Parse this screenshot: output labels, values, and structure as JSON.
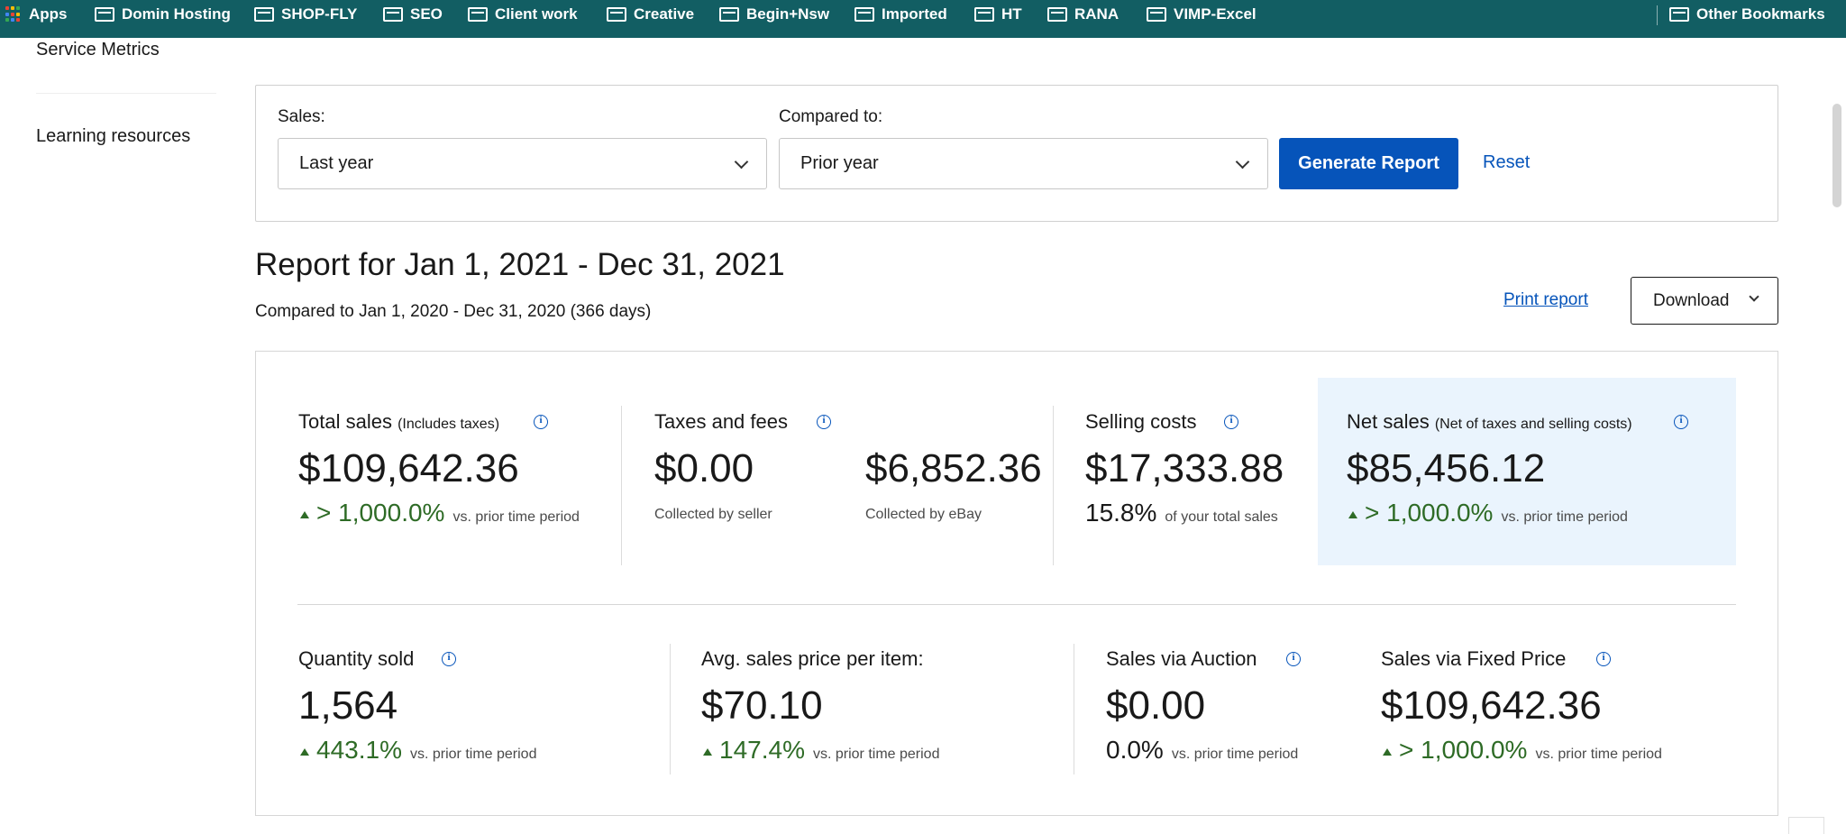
{
  "bookmarks": {
    "apps_label": "Apps",
    "items": [
      {
        "label": "Domin Hosting"
      },
      {
        "label": "SHOP-FLY"
      },
      {
        "label": "SEO"
      },
      {
        "label": "Client work"
      },
      {
        "label": "Creative"
      },
      {
        "label": "Begin+Nsw"
      },
      {
        "label": "Imported"
      },
      {
        "label": "HT"
      },
      {
        "label": "RANA"
      },
      {
        "label": "VIMP-Excel"
      }
    ],
    "other_label": "Other Bookmarks"
  },
  "sidebar": {
    "items": [
      {
        "label": "Service Metrics"
      },
      {
        "label": "Learning resources"
      }
    ]
  },
  "filters": {
    "sales_label": "Sales:",
    "sales_value": "Last year",
    "compare_label": "Compared to:",
    "compare_value": "Prior year",
    "generate_label": "Generate Report",
    "reset_label": "Reset"
  },
  "report": {
    "title": "Report for Jan 1, 2021 - Dec 31, 2021",
    "subtitle": "Compared to Jan 1, 2020 - Dec 31, 2020 (366 days)",
    "print_label": "Print report",
    "download_label": "Download"
  },
  "metrics": {
    "total_sales": {
      "title": "Total sales",
      "qualifier": "(Includes taxes)",
      "value": "$109,642.36",
      "change": "> 1,000.0%",
      "vs": "vs. prior time period"
    },
    "taxes": {
      "title": "Taxes and fees",
      "seller_value": "$0.00",
      "seller_caption": "Collected by seller",
      "ebay_value": "$6,852.36",
      "ebay_caption": "Collected by eBay"
    },
    "selling_costs": {
      "title": "Selling costs",
      "value": "$17,333.88",
      "pct": "15.8%",
      "pct_caption": "of your total sales"
    },
    "net_sales": {
      "title": "Net sales",
      "qualifier": "(Net of taxes and selling costs)",
      "value": "$85,456.12",
      "change": "> 1,000.0%",
      "vs": "vs. prior time period"
    },
    "quantity_sold": {
      "title": "Quantity sold",
      "value": "1,564",
      "change": "443.1%",
      "vs": "vs. prior time period"
    },
    "avg_price": {
      "title": "Avg. sales price per item:",
      "value": "$70.10",
      "change": "147.4%",
      "vs": "vs. prior time period"
    },
    "auction": {
      "title": "Sales via Auction",
      "value": "$0.00",
      "change": "0.0%",
      "vs": "vs. prior time period"
    },
    "fixed_price": {
      "title": "Sales via Fixed Price",
      "value": "$109,642.36",
      "change": "> 1,000.0%",
      "vs": "vs. prior time period"
    }
  },
  "colors": {
    "bookmark_bar": "#125e63",
    "primary_blue": "#0654ba",
    "positive_green": "#2e6b26",
    "net_sales_highlight": "#eaf4fd"
  }
}
